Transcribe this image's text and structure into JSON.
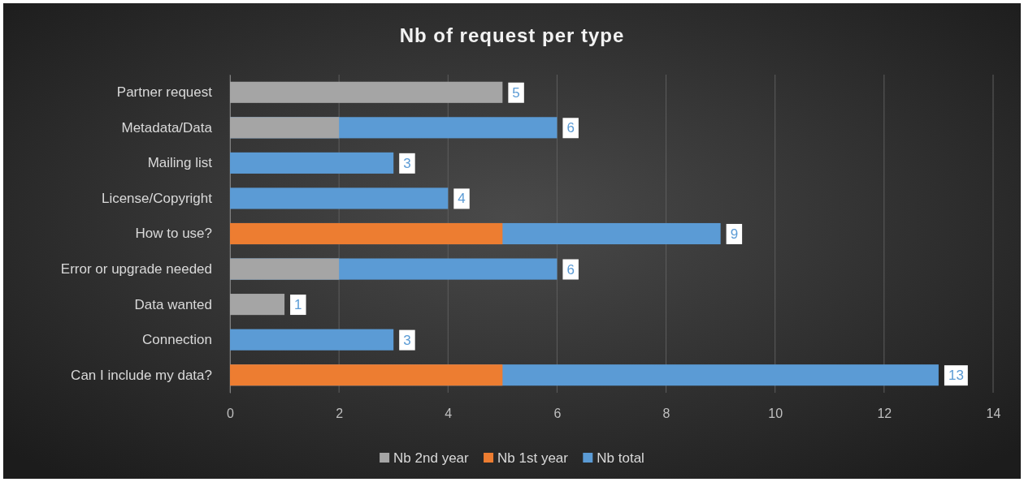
{
  "chart_data": {
    "type": "bar",
    "orientation": "horizontal",
    "title": "Nb of request per type",
    "categories": [
      "Partner request",
      "Metadata/Data",
      "Mailing list",
      "License/Copyright",
      "How to use?",
      "Error or upgrade needed",
      "Data wanted",
      "Connection",
      "Can I include my data?"
    ],
    "series": [
      {
        "name": "Nb 2nd year",
        "color": "#a5a5a5",
        "values": [
          5,
          2,
          null,
          null,
          null,
          2,
          1,
          null,
          null
        ]
      },
      {
        "name": "Nb 1st year",
        "color": "#ed7d31",
        "values": [
          null,
          null,
          null,
          null,
          5,
          null,
          null,
          null,
          5
        ]
      },
      {
        "name": "Nb total",
        "color": "#5b9bd5",
        "values": [
          null,
          6,
          3,
          4,
          9,
          6,
          null,
          3,
          13
        ],
        "value_labels": [
          "5",
          "6",
          "3",
          "4",
          "9",
          "6",
          "1",
          "3",
          "13"
        ]
      }
    ],
    "xlim": [
      0,
      14
    ],
    "xticks": [
      0,
      2,
      4,
      6,
      8,
      10,
      12,
      14
    ],
    "grid": "x",
    "legend": "bottom"
  }
}
